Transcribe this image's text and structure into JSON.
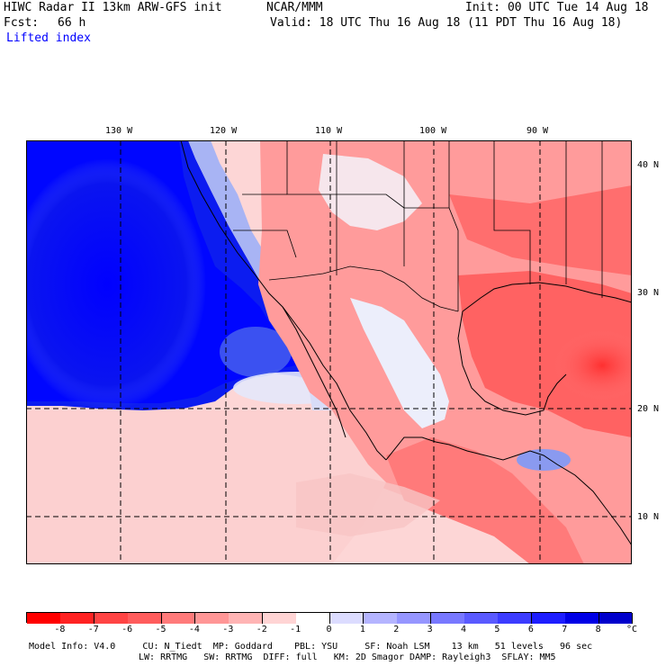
{
  "header": {
    "title_line": "HIWC Radar II 13km ARW-GFS init",
    "org": "NCAR/MMM",
    "init": "Init: 00 UTC Tue 14 Aug 18",
    "fcst_label": "Fcst:",
    "fcst_value": "66 h",
    "valid": "Valid: 18 UTC Thu 16 Aug 18 (11 PDT Thu 16 Aug 18)",
    "field": "Lifted index"
  },
  "map": {
    "lon_labels": [
      "130 W",
      "120 W",
      "110 W",
      "100 W",
      "90 W"
    ],
    "lat_labels": [
      "40 N",
      "30 N",
      "20 N",
      "10 N"
    ]
  },
  "colorbar": {
    "unit": "°C",
    "ticks": [
      "-8",
      "-7",
      "-6",
      "-5",
      "-4",
      "-3",
      "-2",
      "-1",
      "0",
      "1",
      "2",
      "3",
      "4",
      "5",
      "6",
      "7",
      "8"
    ],
    "colors": [
      "#ff0000",
      "#ff2222",
      "#ff4444",
      "#ff5c5c",
      "#ff7a7a",
      "#ff9696",
      "#ffb4b4",
      "#ffd4d4",
      "#ffffff",
      "#dcdcff",
      "#b4b4ff",
      "#9696ff",
      "#7878ff",
      "#5a5aff",
      "#3c3cff",
      "#1e1eff",
      "#0000e6",
      "#0000cc"
    ]
  },
  "footer": {
    "line1": "Model Info: V4.0     CU: N_Tiedt  MP: Goddard    PBL: YSU     SF: Noah LSM    13 km   51 levels   96 sec",
    "line2": "LW: RRTMG   SW: RRTMG  DIFF: full   KM: 2D Smagor DAMP: Rayleigh3  SFLAY: MM5"
  }
}
